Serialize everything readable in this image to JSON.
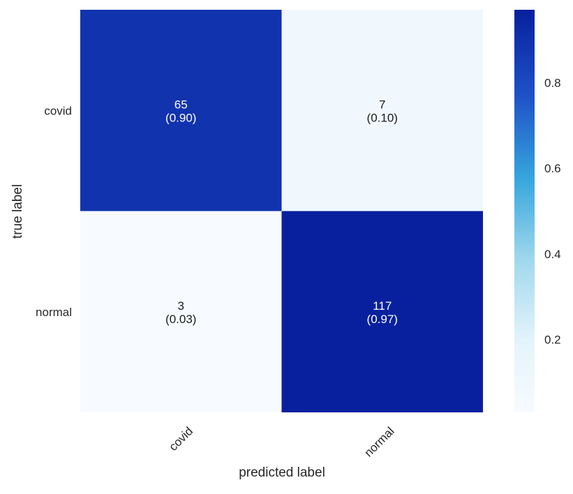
{
  "chart_data": {
    "type": "heatmap",
    "title": "",
    "xlabel": "predicted label",
    "ylabel": "true label",
    "x_categories": [
      "covid",
      "normal"
    ],
    "y_categories": [
      "covid",
      "normal"
    ],
    "counts": [
      [
        65,
        7
      ],
      [
        3,
        117
      ]
    ],
    "fractions": [
      [
        0.9,
        0.1
      ],
      [
        0.03,
        0.97
      ]
    ],
    "cell_labels": [
      [
        "(0.90)",
        "(0.10)"
      ],
      [
        "(0.03)",
        "(0.97)"
      ]
    ],
    "colorbar": {
      "ticks": [
        0.2,
        0.4,
        0.6,
        0.8
      ],
      "tick_labels": [
        "0.2",
        "0.4",
        "0.6",
        "0.8"
      ],
      "range": [
        0.03,
        0.97
      ]
    },
    "colormap": [
      "#f7fbff",
      "#e3f4fb",
      "#9fd8ec",
      "#36a6dd",
      "#1f53c8",
      "#08209e"
    ],
    "text_colors": {
      "dark": "#1a1a1a",
      "light": "#ffffff"
    },
    "grid": false
  }
}
